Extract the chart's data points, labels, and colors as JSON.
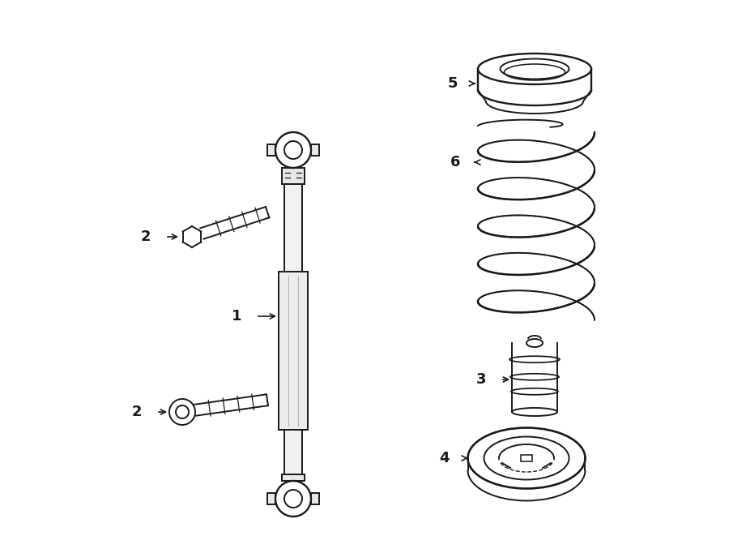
{
  "bg_color": "#ffffff",
  "line_color": "#1a1a1a",
  "line_width": 1.4,
  "label_fontsize": 13,
  "fig_width": 9.0,
  "fig_height": 6.61,
  "dpi": 100
}
